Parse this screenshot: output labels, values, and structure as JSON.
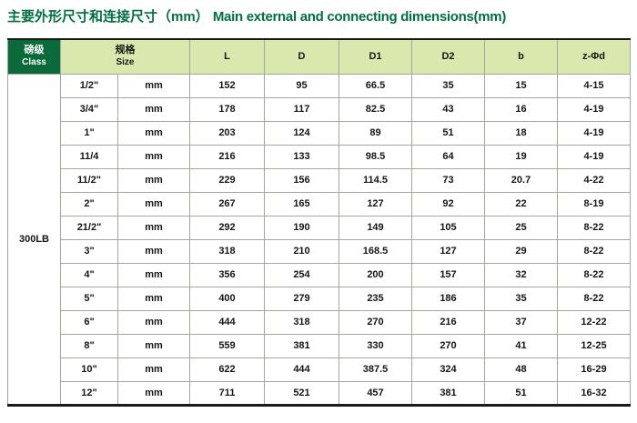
{
  "title": {
    "zh": "主要外形尺寸和连接尺寸（mm）",
    "en": "Main external and connecting dimensions(mm)"
  },
  "colors": {
    "title_green": "#00703e",
    "header_dark_green": "#0b6a39",
    "header_light_green": "#d9e9ae",
    "grid_line": "#a0a79d",
    "frame_black": "#1a1a1a"
  },
  "table": {
    "header": {
      "class_zh": "磅级",
      "class_en": "Class",
      "size_zh": "规格",
      "size_en": "Size",
      "cols": [
        "L",
        "D",
        "D1",
        "D2",
        "b",
        "z-Φd"
      ]
    },
    "class_value": "300LB",
    "rows": [
      {
        "size": "1/2\"",
        "unit": "mm",
        "L": "152",
        "D": "95",
        "D1": "66.5",
        "D2": "35",
        "b": "15",
        "zd": "4-15"
      },
      {
        "size": "3/4\"",
        "unit": "mm",
        "L": "178",
        "D": "117",
        "D1": "82.5",
        "D2": "43",
        "b": "16",
        "zd": "4-19"
      },
      {
        "size": "1\"",
        "unit": "mm",
        "L": "203",
        "D": "124",
        "D1": "89",
        "D2": "51",
        "b": "18",
        "zd": "4-19"
      },
      {
        "size": "11/4",
        "unit": "mm",
        "L": "216",
        "D": "133",
        "D1": "98.5",
        "D2": "64",
        "b": "19",
        "zd": "4-19"
      },
      {
        "size": "11/2\"",
        "unit": "mm",
        "L": "229",
        "D": "156",
        "D1": "114.5",
        "D2": "73",
        "b": "20.7",
        "zd": "4-22"
      },
      {
        "size": "2\"",
        "unit": "mm",
        "L": "267",
        "D": "165",
        "D1": "127",
        "D2": "92",
        "b": "22",
        "zd": "8-19"
      },
      {
        "size": "21/2\"",
        "unit": "mm",
        "L": "292",
        "D": "190",
        "D1": "149",
        "D2": "105",
        "b": "25",
        "zd": "8-22"
      },
      {
        "size": "3\"",
        "unit": "mm",
        "L": "318",
        "D": "210",
        "D1": "168.5",
        "D2": "127",
        "b": "29",
        "zd": "8-22"
      },
      {
        "size": "4\"",
        "unit": "mm",
        "L": "356",
        "D": "254",
        "D1": "200",
        "D2": "157",
        "b": "32",
        "zd": "8-22"
      },
      {
        "size": "5\"",
        "unit": "mm",
        "L": "400",
        "D": "279",
        "D1": "235",
        "D2": "186",
        "b": "35",
        "zd": "8-22"
      },
      {
        "size": "6\"",
        "unit": "mm",
        "L": "444",
        "D": "318",
        "D1": "270",
        "D2": "216",
        "b": "37",
        "zd": "12-22"
      },
      {
        "size": "8\"",
        "unit": "mm",
        "L": "559",
        "D": "381",
        "D1": "330",
        "D2": "270",
        "b": "41",
        "zd": "12-25"
      },
      {
        "size": "10\"",
        "unit": "mm",
        "L": "622",
        "D": "444",
        "D1": "387.5",
        "D2": "324",
        "b": "48",
        "zd": "16-29"
      },
      {
        "size": "12\"",
        "unit": "mm",
        "L": "711",
        "D": "521",
        "D1": "457",
        "D2": "381",
        "b": "51",
        "zd": "16-32"
      }
    ]
  }
}
